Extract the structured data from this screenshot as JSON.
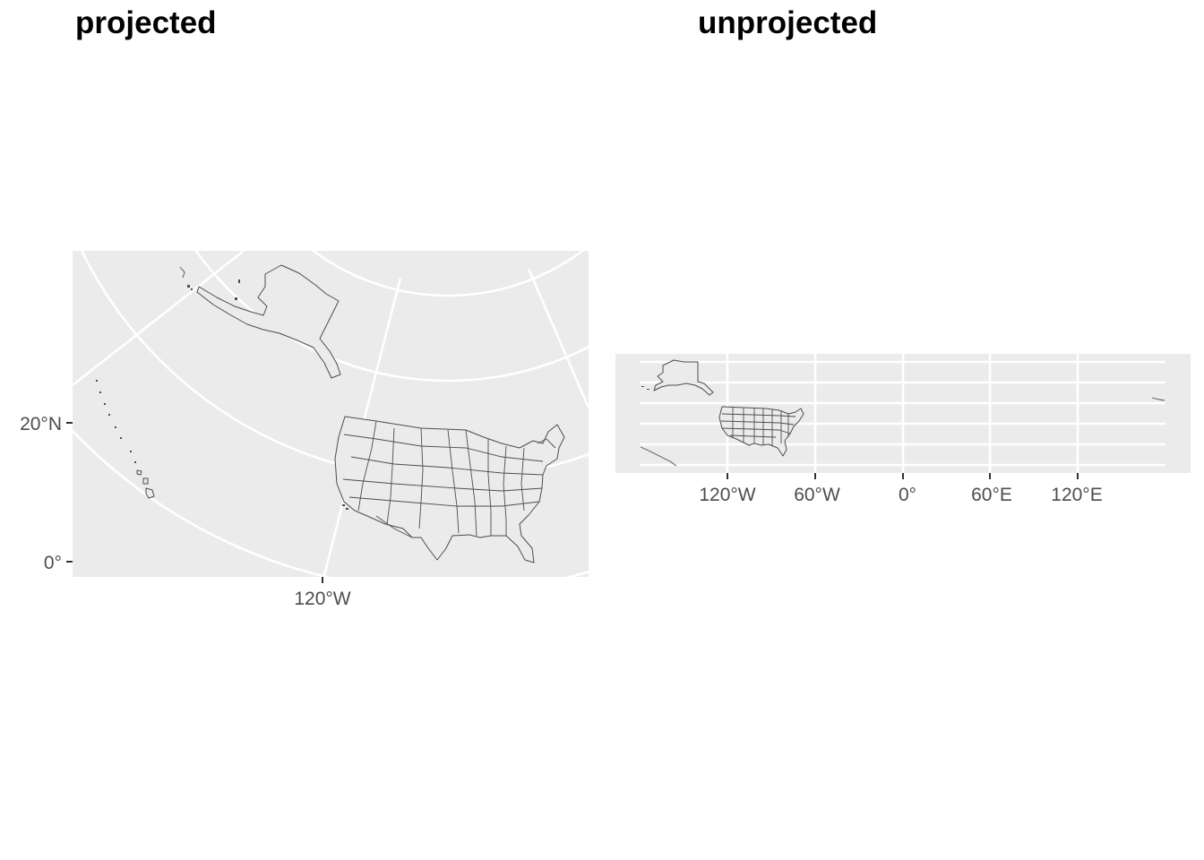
{
  "panels": {
    "left": {
      "title": "projected",
      "y_ticks": [
        "20°N",
        "0°"
      ],
      "x_ticks": [
        "120°W"
      ]
    },
    "right": {
      "title": "unprojected",
      "x_ticks": [
        "120°W",
        "60°W",
        "0°",
        "60°E",
        "120°E"
      ]
    }
  },
  "colors": {
    "panel_background": "#ebebeb",
    "grid": "#ffffff",
    "outline": "#4d4d4d",
    "tick_text": "#4d4d4d"
  }
}
